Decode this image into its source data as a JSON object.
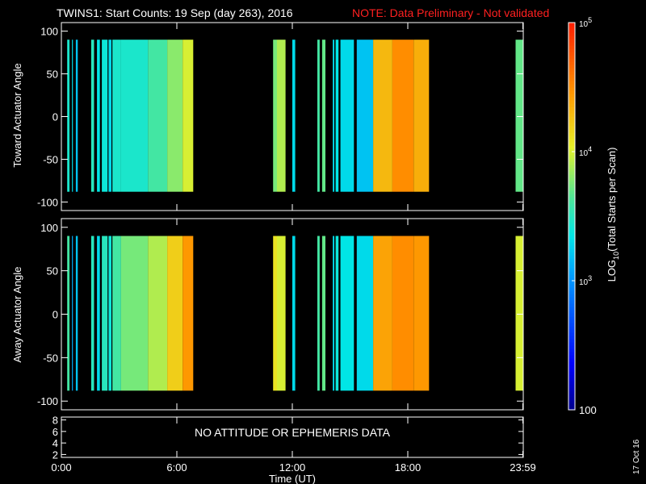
{
  "header": {
    "title": "TWINS1: Start Counts: 19 Sep (day 263), 2016",
    "note": "NOTE: Data Preliminary - Not validated"
  },
  "footer": {
    "date_stamp": "17 Oct 16"
  },
  "colors": {
    "background": "#000000",
    "axes": "#ffffff",
    "note": "#ff2020"
  },
  "chart_data": [
    {
      "type": "heatmap",
      "name": "toward",
      "ylabel": "Toward Actuator Angle",
      "ylim": [
        -110,
        110
      ],
      "yticks": [
        100,
        50,
        0,
        -50,
        -100
      ],
      "xlim": [
        0,
        24
      ],
      "y_range_filled": [
        -88,
        90
      ],
      "time_blocks": [
        {
          "t0": 0.3,
          "t1": 0.42,
          "log_value": 3.45
        },
        {
          "t0": 0.55,
          "t1": 0.6,
          "log_value": 3.3
        },
        {
          "t0": 0.75,
          "t1": 0.85,
          "log_value": 3.2
        },
        {
          "t0": 1.55,
          "t1": 1.7,
          "log_value": 3.5
        },
        {
          "t0": 1.85,
          "t1": 2.0,
          "log_value": 3.35
        },
        {
          "t0": 2.1,
          "t1": 2.4,
          "log_value": 3.4
        },
        {
          "t0": 2.45,
          "t1": 2.6,
          "log_value": 3.3
        },
        {
          "t0": 2.65,
          "t1": 3.1,
          "log_value": 3.45
        },
        {
          "t0": 3.1,
          "t1": 4.5,
          "log_value": 3.45
        },
        {
          "t0": 4.5,
          "t1": 5.5,
          "log_value": 3.6
        },
        {
          "t0": 5.5,
          "t1": 6.3,
          "log_value": 3.8
        },
        {
          "t0": 6.3,
          "t1": 6.85,
          "log_value": 4.0
        },
        {
          "t0": 11.0,
          "t1": 11.2,
          "log_value": 3.75
        },
        {
          "t0": 11.2,
          "t1": 11.65,
          "log_value": 3.9
        },
        {
          "t0": 12.0,
          "t1": 12.15,
          "log_value": 3.3
        },
        {
          "t0": 13.3,
          "t1": 13.42,
          "log_value": 3.6
        },
        {
          "t0": 13.55,
          "t1": 13.72,
          "log_value": 3.7
        },
        {
          "t0": 14.1,
          "t1": 14.18,
          "log_value": 3.3
        },
        {
          "t0": 14.25,
          "t1": 14.4,
          "log_value": 3.35
        },
        {
          "t0": 14.5,
          "t1": 15.2,
          "log_value": 3.3
        },
        {
          "t0": 15.35,
          "t1": 16.2,
          "log_value": 3.2
        },
        {
          "t0": 16.2,
          "t1": 17.2,
          "log_value": 4.3
        },
        {
          "t0": 17.2,
          "t1": 18.3,
          "log_value": 4.5
        },
        {
          "t0": 18.3,
          "t1": 19.1,
          "log_value": 4.35
        },
        {
          "t0": 23.6,
          "t1": 24.0,
          "log_value": 3.7
        }
      ]
    },
    {
      "type": "heatmap",
      "name": "away",
      "ylabel": "Away Actuator Angle",
      "ylim": [
        -110,
        110
      ],
      "yticks": [
        100,
        50,
        0,
        -50,
        -100
      ],
      "xlim": [
        0,
        24
      ],
      "y_range_filled": [
        -88,
        90
      ],
      "time_blocks": [
        {
          "t0": 0.3,
          "t1": 0.42,
          "log_value": 3.6
        },
        {
          "t0": 0.55,
          "t1": 0.6,
          "log_value": 3.1
        },
        {
          "t0": 0.75,
          "t1": 0.85,
          "log_value": 3.2
        },
        {
          "t0": 1.55,
          "t1": 1.7,
          "log_value": 3.5
        },
        {
          "t0": 1.85,
          "t1": 2.0,
          "log_value": 3.3
        },
        {
          "t0": 2.1,
          "t1": 2.4,
          "log_value": 3.5
        },
        {
          "t0": 2.45,
          "t1": 2.6,
          "log_value": 3.4
        },
        {
          "t0": 2.65,
          "t1": 3.1,
          "log_value": 3.6
        },
        {
          "t0": 3.1,
          "t1": 4.5,
          "log_value": 3.75
        },
        {
          "t0": 4.5,
          "t1": 5.5,
          "log_value": 3.9
        },
        {
          "t0": 5.5,
          "t1": 6.3,
          "log_value": 4.2
        },
        {
          "t0": 6.3,
          "t1": 6.85,
          "log_value": 4.45
        },
        {
          "t0": 11.0,
          "t1": 11.2,
          "log_value": 4.1
        },
        {
          "t0": 11.2,
          "t1": 11.65,
          "log_value": 4.0
        },
        {
          "t0": 12.0,
          "t1": 12.15,
          "log_value": 3.3
        },
        {
          "t0": 13.3,
          "t1": 13.42,
          "log_value": 3.6
        },
        {
          "t0": 13.55,
          "t1": 13.72,
          "log_value": 3.7
        },
        {
          "t0": 14.1,
          "t1": 14.18,
          "log_value": 3.3
        },
        {
          "t0": 14.25,
          "t1": 14.4,
          "log_value": 3.4
        },
        {
          "t0": 14.5,
          "t1": 15.2,
          "log_value": 3.35
        },
        {
          "t0": 15.35,
          "t1": 16.2,
          "log_value": 3.3
        },
        {
          "t0": 16.2,
          "t1": 17.2,
          "log_value": 4.4
        },
        {
          "t0": 17.2,
          "t1": 18.3,
          "log_value": 4.5
        },
        {
          "t0": 18.3,
          "t1": 19.1,
          "log_value": 4.45
        },
        {
          "t0": 23.6,
          "t1": 24.0,
          "log_value": 4.0
        }
      ]
    },
    {
      "type": "line",
      "name": "attitude",
      "yticks": [
        8,
        6,
        4,
        2
      ],
      "ylim": [
        1.5,
        8.5
      ],
      "message": "NO ATTITUDE OR EPHEMERIS DATA",
      "xticks": [
        "0:00",
        "6:00",
        "12:00",
        "18:00",
        "23:59"
      ],
      "xtick_values": [
        0,
        6,
        12,
        18,
        23.98
      ],
      "xlabel": "Time (UT)",
      "xlim": [
        0,
        24
      ]
    }
  ],
  "colorbar": {
    "label": "LOG10(Total Starts per Scan)",
    "label_main": "LOG",
    "label_sub": "10",
    "label_rest": "(Total Starts per Scan)",
    "ticks": [
      {
        "base": "10",
        "exp": "5",
        "value": 5
      },
      {
        "base": "10",
        "exp": "4",
        "value": 4
      },
      {
        "base": "10",
        "exp": "3",
        "value": 3
      },
      {
        "label": "100",
        "value": 2
      }
    ],
    "range": [
      2,
      5
    ]
  }
}
